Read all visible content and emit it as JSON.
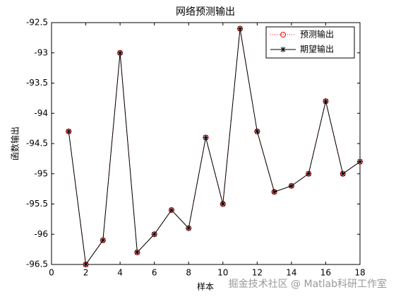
{
  "chart_data": {
    "type": "line",
    "title": "网络预测输出",
    "x_label": "样本",
    "y_label": "函数输出",
    "x": [
      1,
      2,
      3,
      4,
      5,
      6,
      7,
      8,
      9,
      10,
      11,
      12,
      13,
      14,
      15,
      16,
      17,
      18
    ],
    "series": [
      {
        "name": "预测输出",
        "color": "#ff0000",
        "marker": "o",
        "line_style": "dotted",
        "values": [
          -94.3,
          -96.5,
          -96.1,
          -93.0,
          -96.3,
          -96.0,
          -95.6,
          -95.9,
          -94.4,
          -95.5,
          -92.6,
          -94.3,
          -95.3,
          -95.2,
          -95.0,
          -93.8,
          -95.0,
          -94.8
        ]
      },
      {
        "name": "期望输出",
        "color": "#000000",
        "marker": "*",
        "line_style": "solid",
        "values": [
          -94.3,
          -96.5,
          -96.1,
          -93.0,
          -96.3,
          -96.0,
          -95.6,
          -95.9,
          -94.4,
          -95.5,
          -92.6,
          -94.3,
          -95.3,
          -95.2,
          -95.0,
          -93.8,
          -95.0,
          -94.8
        ]
      }
    ],
    "xlim": [
      0,
      18
    ],
    "xticks": [
      0,
      2,
      4,
      6,
      8,
      10,
      12,
      14,
      16,
      18
    ],
    "ylim": [
      -96.5,
      -92.5
    ],
    "yticks": [
      -96.5,
      -96,
      -95.5,
      -95,
      -94.5,
      -94,
      -93.5,
      -93,
      -92.5
    ],
    "legend": "top-right",
    "grid": false,
    "watermark": "掘金技术社区 @ Matlab科研工作室"
  }
}
